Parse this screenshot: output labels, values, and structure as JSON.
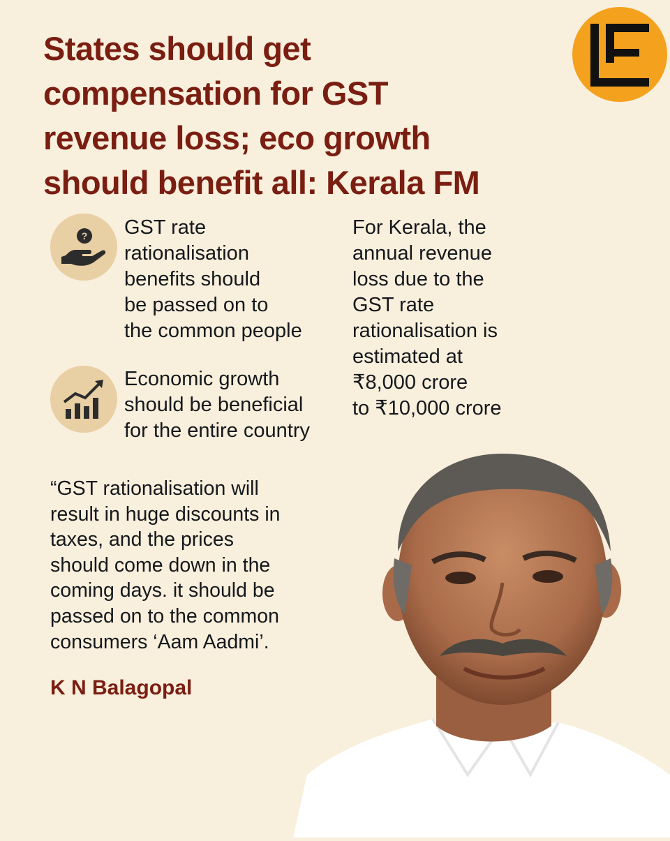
{
  "headline": {
    "lines": [
      "States should get",
      "compensation for GST",
      "revenue loss; eco growth",
      "should benefit all: Kerala FM"
    ]
  },
  "logo": {
    "icon": "e-logo-icon",
    "color": "#f4a11e"
  },
  "points": [
    {
      "icon": "hand-question-icon",
      "lines": [
        "GST rate",
        "rationalisation",
        "benefits should",
        "be passed on to",
        "the common people"
      ]
    },
    {
      "icon": "growth-chart-icon",
      "lines": [
        "Economic growth",
        "should be beneficial",
        "for the entire country"
      ]
    }
  ],
  "stat": {
    "lines": [
      "For Kerala, the",
      "annual revenue",
      "loss due to the",
      "GST rate",
      "rationalisation is",
      "estimated at",
      "₹8,000 crore",
      "to ₹10,000 crore"
    ]
  },
  "quote": {
    "lines": [
      "“GST rationalisation will",
      "result in huge discounts in",
      "taxes, and the prices",
      "should come down in the",
      "coming days. it should be",
      "passed on to the common",
      "consumers ‘Aam Aadmi’."
    ]
  },
  "author": "K N Balagopal",
  "colors": {
    "background": "#f8efdc",
    "headline": "#7a1e12",
    "accent": "#f4a11e",
    "text": "#15181c"
  }
}
